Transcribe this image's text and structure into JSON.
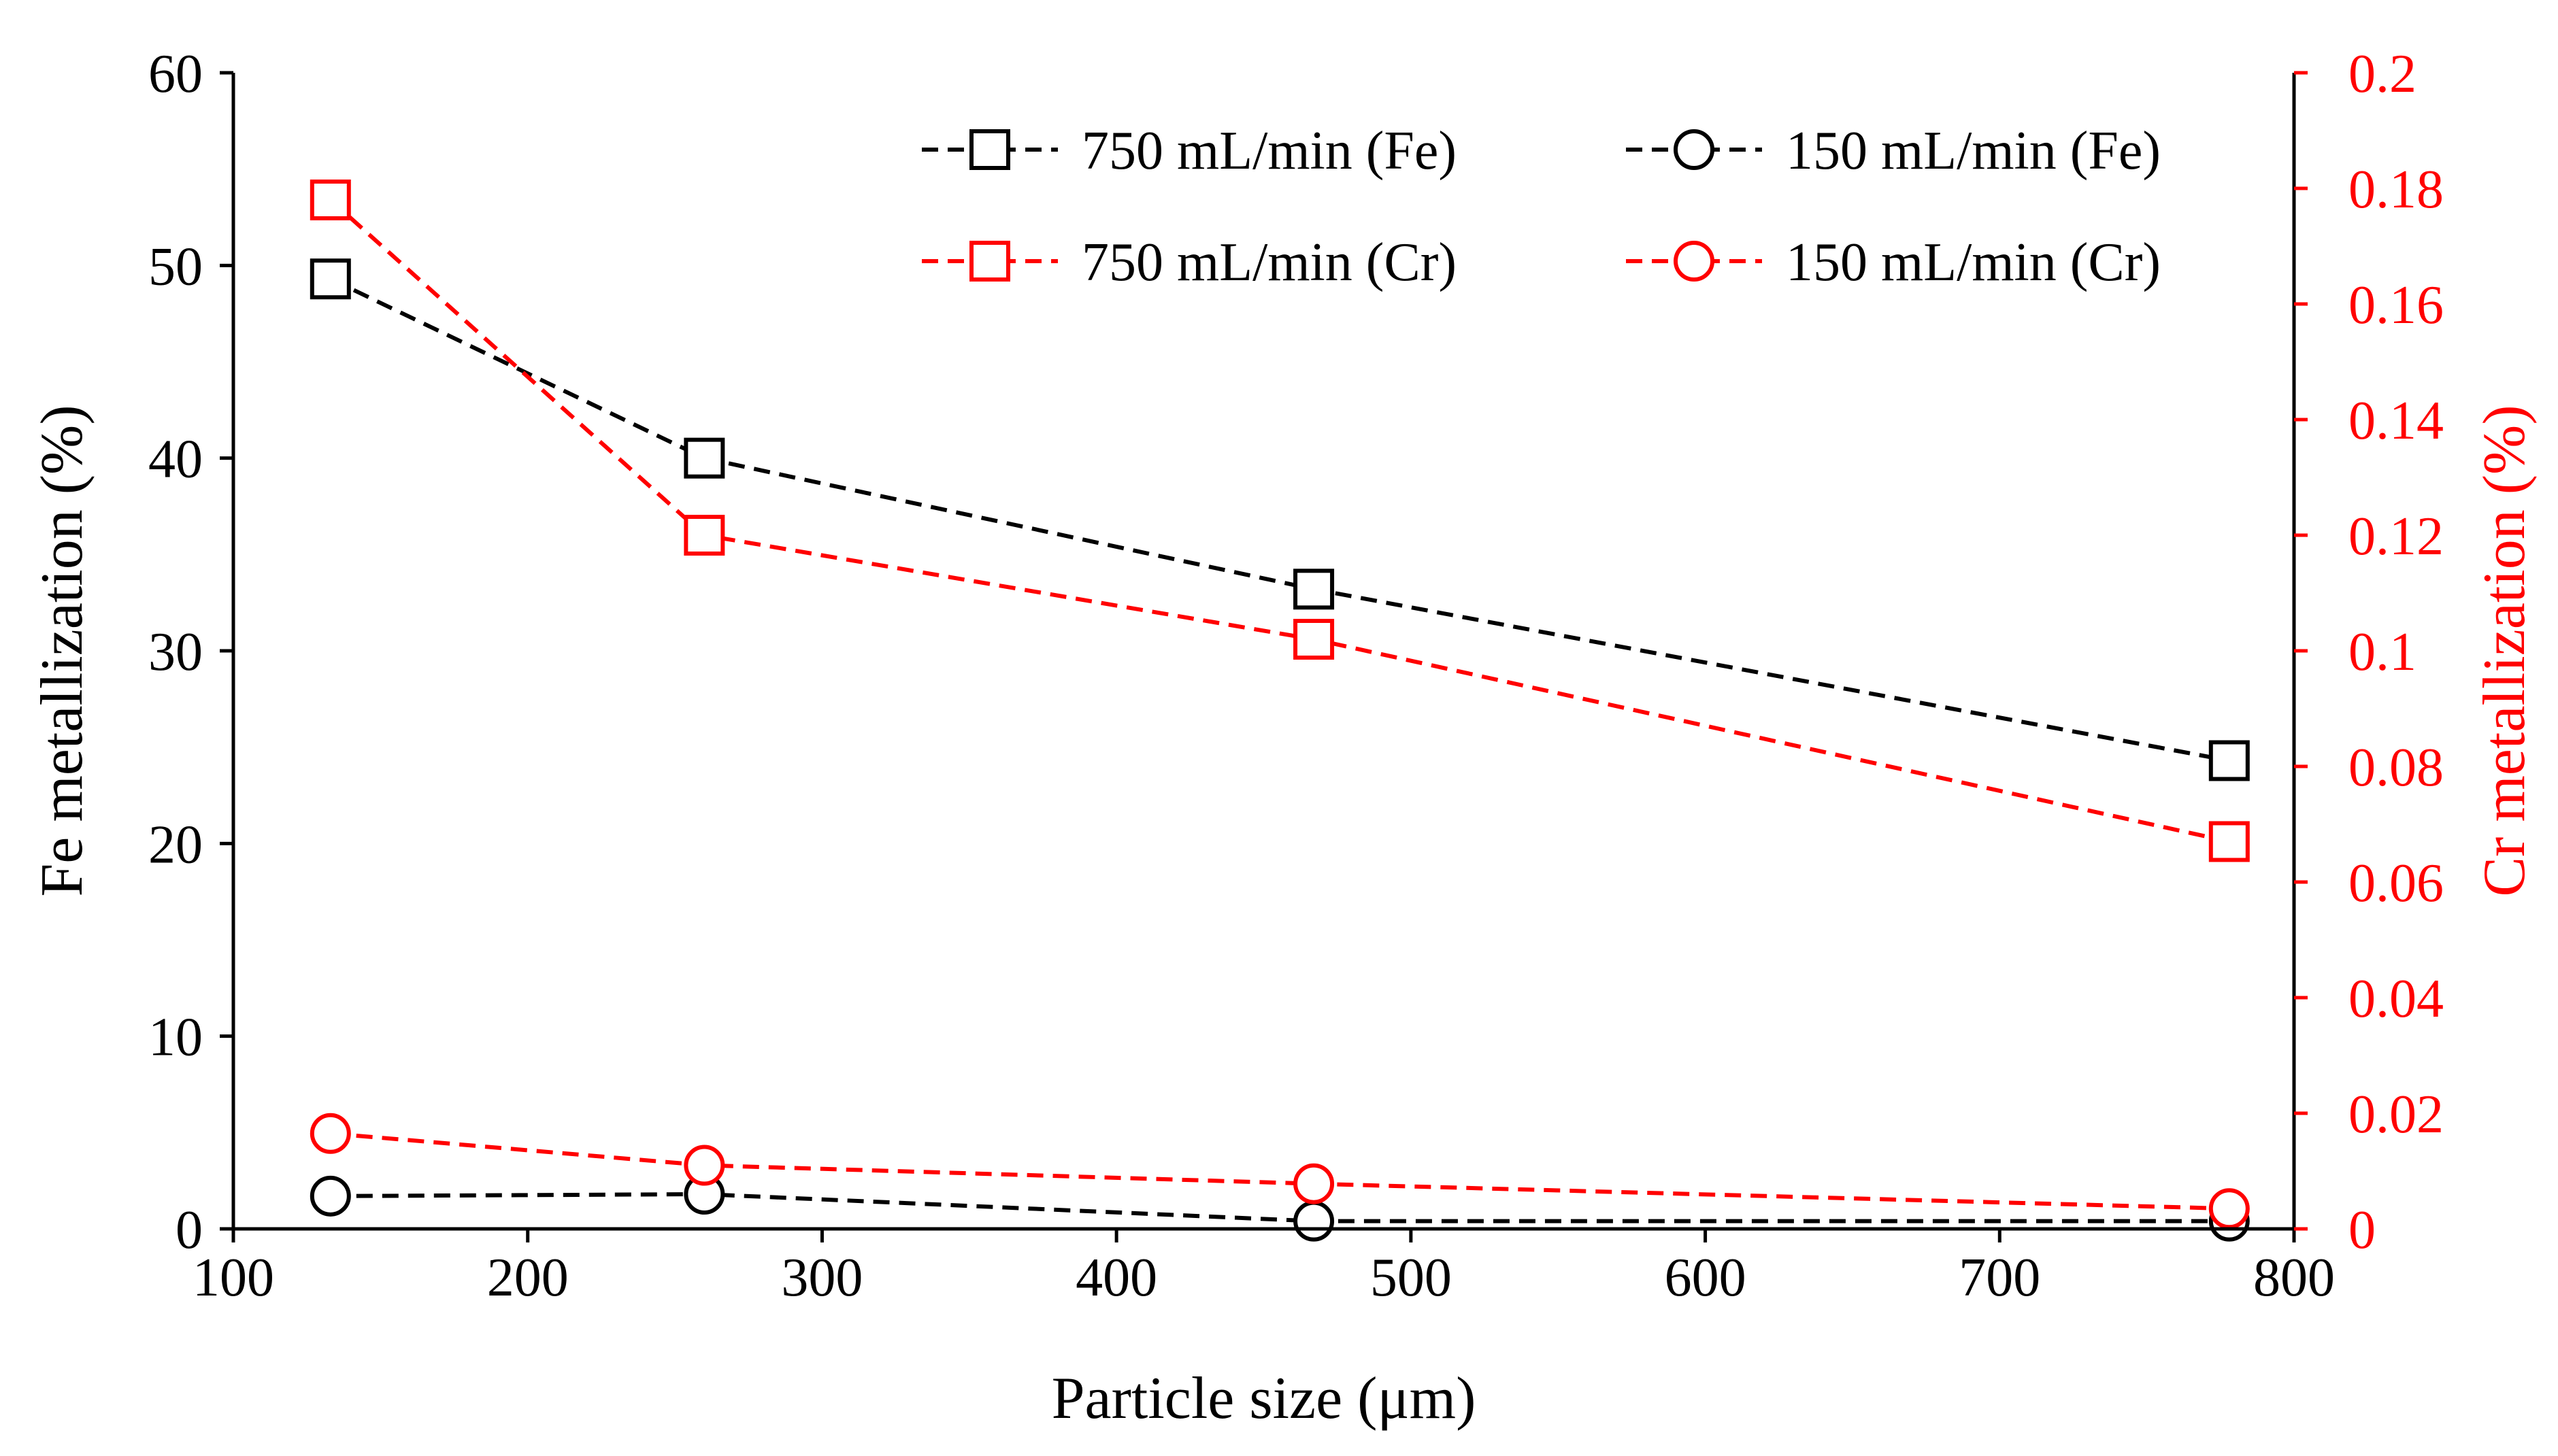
{
  "chart_data": {
    "type": "line",
    "title": "",
    "xlabel": "Particle size (μm)",
    "ylabel": "Fe metallization (%)",
    "y2label": "Cr metallization (%)",
    "xlim": [
      100,
      800
    ],
    "ylim": [
      0,
      60
    ],
    "y2lim": [
      0,
      0.2
    ],
    "xticks": [
      "100",
      "200",
      "300",
      "400",
      "500",
      "600",
      "700",
      "800"
    ],
    "yticks": [
      "0",
      "10",
      "20",
      "30",
      "40",
      "50",
      "60"
    ],
    "y2ticks": [
      "0",
      "0.02",
      "0.04",
      "0.06",
      "0.08",
      "0.1",
      "0.12",
      "0.14",
      "0.16",
      "0.18",
      "0.2"
    ],
    "x": [
      133,
      260,
      467,
      778
    ],
    "series": [
      {
        "name": "750 mL/min (Fe)",
        "axis": "left",
        "marker": "square",
        "color": "#000000",
        "values": [
          49.3,
          40.0,
          33.2,
          24.3
        ]
      },
      {
        "name": "150 mL/min (Fe)",
        "axis": "left",
        "marker": "circle",
        "color": "#000000",
        "values": [
          1.7,
          1.8,
          0.4,
          0.4
        ]
      },
      {
        "name": "750 mL/min (Cr)",
        "axis": "right",
        "marker": "square",
        "color": "#ff0000",
        "values": [
          0.178,
          0.12,
          0.102,
          0.067
        ]
      },
      {
        "name": "150 mL/min (Cr)",
        "axis": "right",
        "marker": "circle",
        "color": "#ff0000",
        "values": [
          0.0165,
          0.011,
          0.0078,
          0.0035
        ]
      }
    ],
    "legend_position": "top-right"
  }
}
